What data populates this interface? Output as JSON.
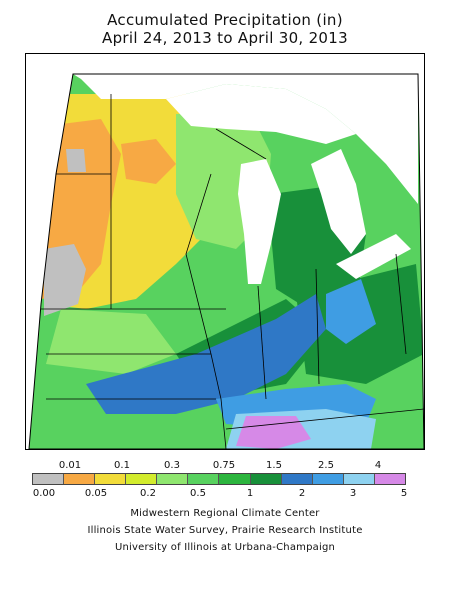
{
  "title": {
    "line1": "Accumulated Precipitation (in)",
    "line2": "April 24, 2013 to April 30, 2013"
  },
  "legend": {
    "top_labels": [
      "0.01",
      "0.1",
      "0.3",
      "0.75",
      "1.5",
      "2.5",
      "4"
    ],
    "bottom_labels": [
      "0.00",
      "0.05",
      "0.2",
      "0.5",
      "1",
      "2",
      "3",
      "5"
    ],
    "colors": [
      "#c0c0c0",
      "#f7a944",
      "#f2dc3a",
      "#d3ec2d",
      "#8fe66f",
      "#58d25f",
      "#2cb53e",
      "#18903a",
      "#2f78c6",
      "#3f9de3",
      "#8ed2f0",
      "#d689e7"
    ]
  },
  "credits": {
    "line1": "Midwestern Regional Climate Center",
    "line2": "Illinois State Water Survey, Prairie Research Institute",
    "line3": "University of Illinois at Urbana-Champaign"
  },
  "map_colors": {
    "gray": "#c0c0c0",
    "orange": "#f7a944",
    "yellow": "#f2dc3a",
    "yellowgreen": "#d3ec2d",
    "lightgreen": "#8fe66f",
    "green": "#58d25f",
    "medgreen": "#2cb53e",
    "darkgreen": "#18903a",
    "blue": "#2f78c6",
    "medblue": "#3f9de3",
    "lightblue": "#8ed2f0",
    "purple": "#d689e7",
    "water": "#ffffff",
    "border": "#000000"
  }
}
